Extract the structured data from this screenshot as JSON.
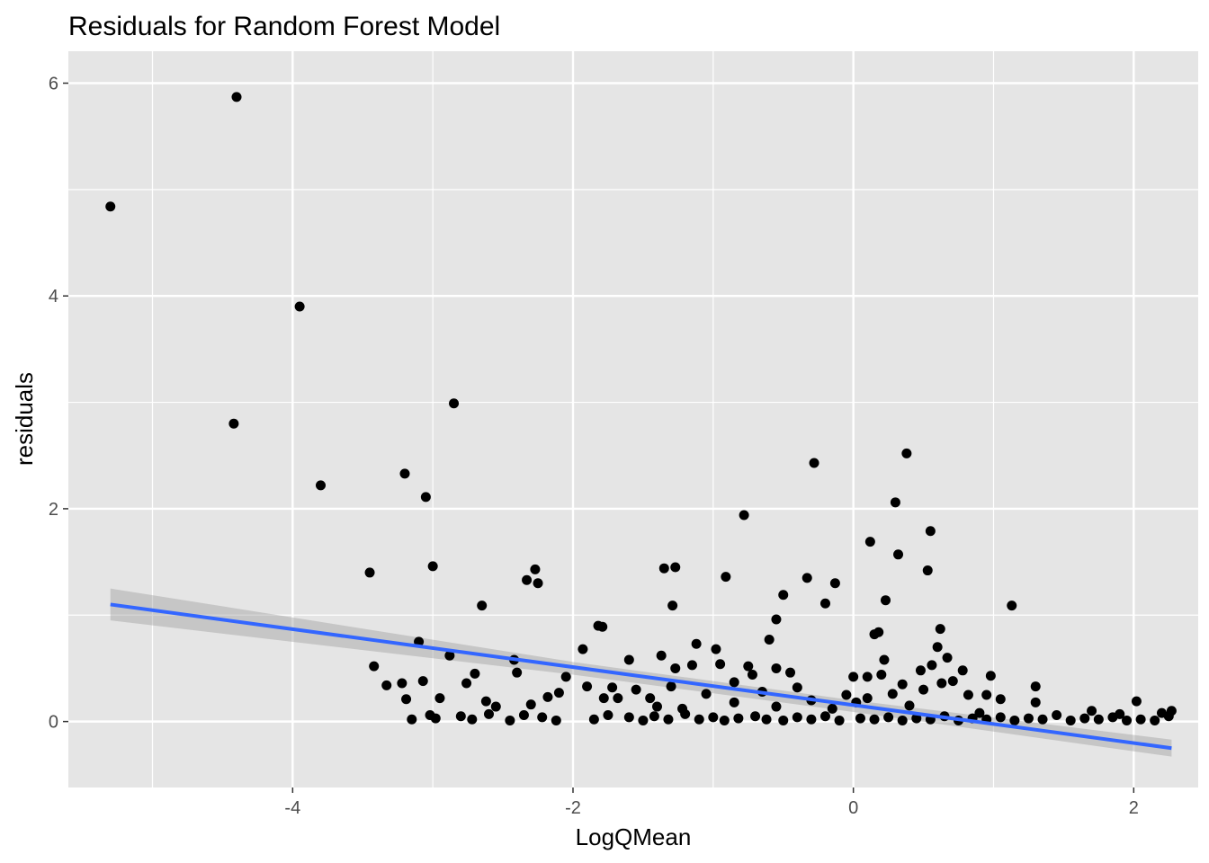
{
  "chart_data": {
    "type": "scatter",
    "title": "Residuals for Random Forest Model",
    "xlabel": "LogQMean",
    "ylabel": "residuals",
    "xlim": [
      -5.6,
      2.46
    ],
    "ylim": [
      -0.62,
      6.3
    ],
    "x_ticks": [
      -4,
      -2,
      0,
      2
    ],
    "y_ticks": [
      0,
      2,
      4,
      6
    ],
    "x_tick_labels": [
      "-4",
      "-2",
      "0",
      "2"
    ],
    "y_tick_labels": [
      "0",
      "2",
      "4",
      "6"
    ],
    "grid": true,
    "legend": "none",
    "colors": {
      "panel": "#e5e5e5",
      "grid": "#ffffff",
      "points": "#000000",
      "fit_line": "#3366ff",
      "fit_band": "#999999"
    },
    "points": [
      [
        -5.3,
        4.84
      ],
      [
        -4.4,
        5.87
      ],
      [
        -4.42,
        2.8
      ],
      [
        -3.95,
        3.9
      ],
      [
        -3.8,
        2.22
      ],
      [
        -2.85,
        2.99
      ],
      [
        -3.2,
        2.33
      ],
      [
        -3.05,
        2.11
      ],
      [
        -3.45,
        1.4
      ],
      [
        -3.0,
        1.46
      ],
      [
        -3.1,
        0.75
      ],
      [
        -2.88,
        0.62
      ],
      [
        -2.65,
        1.09
      ],
      [
        -2.33,
        1.33
      ],
      [
        -2.27,
        1.43
      ],
      [
        -2.25,
        1.3
      ],
      [
        -1.82,
        0.9
      ],
      [
        -1.79,
        0.89
      ],
      [
        -1.93,
        0.68
      ],
      [
        -1.35,
        1.44
      ],
      [
        -1.27,
        1.45
      ],
      [
        -1.29,
        1.09
      ],
      [
        -0.78,
        1.94
      ],
      [
        -0.91,
        1.36
      ],
      [
        -0.28,
        2.43
      ],
      [
        -0.33,
        1.35
      ],
      [
        -0.5,
        1.19
      ],
      [
        -0.55,
        0.96
      ],
      [
        -0.2,
        1.11
      ],
      [
        -0.13,
        1.3
      ],
      [
        0.38,
        2.52
      ],
      [
        0.3,
        2.06
      ],
      [
        0.12,
        1.69
      ],
      [
        0.32,
        1.57
      ],
      [
        0.55,
        1.79
      ],
      [
        0.53,
        1.42
      ],
      [
        0.23,
        1.14
      ],
      [
        1.13,
        1.09
      ],
      [
        0.62,
        0.87
      ],
      [
        0.15,
        0.82
      ],
      [
        0.18,
        0.84
      ],
      [
        0.6,
        0.7
      ],
      [
        0.67,
        0.6
      ],
      [
        -1.12,
        0.73
      ],
      [
        -0.98,
        0.68
      ],
      [
        -0.75,
        0.52
      ],
      [
        -0.6,
        0.77
      ],
      [
        -1.6,
        0.58
      ],
      [
        -1.37,
        0.62
      ],
      [
        -1.6,
        0.04
      ],
      [
        -3.42,
        0.52
      ],
      [
        -3.33,
        0.34
      ],
      [
        -3.22,
        0.36
      ],
      [
        -3.19,
        0.21
      ],
      [
        -3.07,
        0.38
      ],
      [
        -3.02,
        0.06
      ],
      [
        -2.95,
        0.22
      ],
      [
        -2.76,
        0.36
      ],
      [
        -2.7,
        0.45
      ],
      [
        -2.62,
        0.19
      ],
      [
        -2.55,
        0.14
      ],
      [
        -2.42,
        0.58
      ],
      [
        -2.4,
        0.46
      ],
      [
        -2.3,
        0.16
      ],
      [
        -2.18,
        0.23
      ],
      [
        -2.1,
        0.27
      ],
      [
        -2.05,
        0.42
      ],
      [
        -1.9,
        0.33
      ],
      [
        -1.78,
        0.22
      ],
      [
        -1.72,
        0.32
      ],
      [
        -1.68,
        0.22
      ],
      [
        -1.55,
        0.3
      ],
      [
        -1.45,
        0.22
      ],
      [
        -1.4,
        0.14
      ],
      [
        -1.3,
        0.33
      ],
      [
        -1.27,
        0.5
      ],
      [
        -1.15,
        0.53
      ],
      [
        -1.05,
        0.26
      ],
      [
        -0.95,
        0.54
      ],
      [
        -0.85,
        0.37
      ],
      [
        -0.72,
        0.44
      ],
      [
        -0.65,
        0.28
      ],
      [
        -0.55,
        0.5
      ],
      [
        -0.45,
        0.46
      ],
      [
        -0.4,
        0.32
      ],
      [
        -0.3,
        0.2
      ],
      [
        0.0,
        0.42
      ],
      [
        0.1,
        0.42
      ],
      [
        0.2,
        0.44
      ],
      [
        0.22,
        0.58
      ],
      [
        0.28,
        0.26
      ],
      [
        0.35,
        0.35
      ],
      [
        0.48,
        0.48
      ],
      [
        0.56,
        0.53
      ],
      [
        0.63,
        0.36
      ],
      [
        0.71,
        0.38
      ],
      [
        0.78,
        0.48
      ],
      [
        0.82,
        0.25
      ],
      [
        0.95,
        0.25
      ],
      [
        0.98,
        0.43
      ],
      [
        1.05,
        0.21
      ],
      [
        1.3,
        0.33
      ],
      [
        1.3,
        0.18
      ],
      [
        2.02,
        0.19
      ],
      [
        2.27,
        0.1
      ],
      [
        -3.15,
        0.02
      ],
      [
        -2.98,
        0.03
      ],
      [
        -2.8,
        0.05
      ],
      [
        -2.72,
        0.02
      ],
      [
        -2.6,
        0.07
      ],
      [
        -2.45,
        0.01
      ],
      [
        -2.35,
        0.06
      ],
      [
        -2.22,
        0.04
      ],
      [
        -2.12,
        0.01
      ],
      [
        -1.85,
        0.02
      ],
      [
        -1.75,
        0.06
      ],
      [
        -1.5,
        0.01
      ],
      [
        -1.42,
        0.05
      ],
      [
        -1.32,
        0.02
      ],
      [
        -1.2,
        0.07
      ],
      [
        -1.1,
        0.02
      ],
      [
        -1.0,
        0.04
      ],
      [
        -0.92,
        0.01
      ],
      [
        -0.82,
        0.03
      ],
      [
        -0.7,
        0.05
      ],
      [
        -0.62,
        0.02
      ],
      [
        -0.5,
        0.01
      ],
      [
        -0.4,
        0.04
      ],
      [
        -0.3,
        0.02
      ],
      [
        -0.2,
        0.05
      ],
      [
        -0.1,
        0.01
      ],
      [
        0.05,
        0.03
      ],
      [
        0.15,
        0.02
      ],
      [
        0.25,
        0.04
      ],
      [
        0.35,
        0.01
      ],
      [
        0.45,
        0.03
      ],
      [
        0.55,
        0.02
      ],
      [
        0.65,
        0.05
      ],
      [
        0.75,
        0.01
      ],
      [
        0.85,
        0.03
      ],
      [
        0.95,
        0.02
      ],
      [
        1.05,
        0.04
      ],
      [
        1.15,
        0.01
      ],
      [
        1.25,
        0.03
      ],
      [
        1.35,
        0.02
      ],
      [
        1.45,
        0.06
      ],
      [
        1.55,
        0.01
      ],
      [
        1.65,
        0.03
      ],
      [
        1.75,
        0.02
      ],
      [
        1.85,
        0.04
      ],
      [
        1.95,
        0.01
      ],
      [
        2.05,
        0.02
      ],
      [
        2.15,
        0.01
      ],
      [
        2.25,
        0.05
      ],
      [
        -0.15,
        0.12
      ],
      [
        0.02,
        0.18
      ],
      [
        0.4,
        0.15
      ],
      [
        0.9,
        0.08
      ],
      [
        -0.55,
        0.14
      ],
      [
        -0.85,
        0.18
      ],
      [
        -1.22,
        0.12
      ],
      [
        1.7,
        0.1
      ],
      [
        1.9,
        0.07
      ],
      [
        2.2,
        0.08
      ],
      [
        -0.05,
        0.25
      ],
      [
        0.1,
        0.22
      ],
      [
        0.5,
        0.3
      ]
    ],
    "fit_line": {
      "x": [
        -5.3,
        2.27
      ],
      "y": [
        1.1,
        -0.25
      ]
    },
    "fit_band": {
      "x": [
        -5.3,
        -2.0,
        0.0,
        2.27
      ],
      "lower": [
        0.95,
        0.44,
        0.09,
        -0.33
      ],
      "upper": [
        1.25,
        0.56,
        0.2,
        -0.17
      ]
    }
  }
}
